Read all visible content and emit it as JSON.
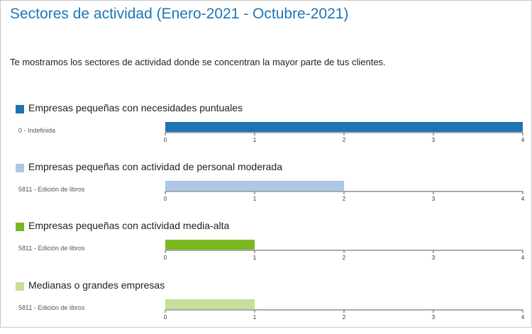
{
  "header": {
    "title": "Sectores de actividad (Enero-2021 - Octubre-2021)",
    "intro": "Te mostramos los sectores de actividad donde se concentran la mayor parte de tus clientes."
  },
  "chart_data": [
    {
      "type": "bar",
      "orientation": "horizontal",
      "legend": "Empresas pequeñas con necesidades puntuales",
      "color": "#1f74b4",
      "categories": [
        "0 - Indefinida"
      ],
      "values": [
        4
      ],
      "xlim": [
        0,
        4
      ],
      "ticks": [
        "0",
        "1",
        "2",
        "3",
        "4"
      ]
    },
    {
      "type": "bar",
      "orientation": "horizontal",
      "legend": "Empresas pequeñas con actividad de personal moderada",
      "color": "#aec7e8",
      "categories": [
        "5811 - Edición de libros"
      ],
      "values": [
        2
      ],
      "xlim": [
        0,
        4
      ],
      "ticks": [
        "0",
        "1",
        "2",
        "3",
        "4"
      ]
    },
    {
      "type": "bar",
      "orientation": "horizontal",
      "legend": "Empresas pequeñas con actividad media-alta",
      "color": "#7ab821",
      "categories": [
        "5811 - Edición de libros"
      ],
      "values": [
        1
      ],
      "xlim": [
        0,
        4
      ],
      "ticks": [
        "0",
        "1",
        "2",
        "3",
        "4"
      ]
    },
    {
      "type": "bar",
      "orientation": "horizontal",
      "legend": "Medianas o grandes empresas",
      "color": "#c7de9b",
      "categories": [
        "5811 - Edición de libros"
      ],
      "values": [
        1
      ],
      "xlim": [
        0,
        4
      ],
      "ticks": [
        "0",
        "1",
        "2",
        "3",
        "4"
      ]
    }
  ]
}
